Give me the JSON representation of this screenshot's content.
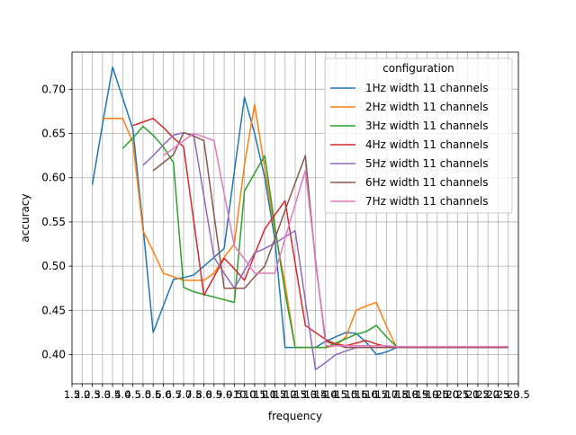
{
  "chart_data": {
    "type": "line",
    "xlabel": "frequency",
    "ylabel": "accuracy",
    "xlim": [
      1.5,
      23.5
    ],
    "ylim": [
      0.367,
      0.742
    ],
    "grid": true,
    "x_ticks": [
      1.5,
      2.0,
      2.5,
      3.0,
      3.5,
      4.0,
      4.5,
      5.0,
      5.5,
      6.0,
      6.5,
      7.0,
      7.5,
      8.0,
      8.5,
      9.0,
      9.5,
      10.0,
      10.5,
      11.0,
      11.5,
      12.0,
      12.5,
      13.0,
      13.5,
      14.0,
      14.5,
      15.0,
      15.5,
      16.0,
      16.5,
      17.0,
      17.5,
      18.0,
      18.5,
      19.0,
      19.5,
      20.0,
      20.5,
      21.0,
      21.5,
      22.0,
      22.5,
      23.0,
      23.5
    ],
    "x_tick_labels": [
      "1.5",
      "2.0",
      "2.5",
      "3.0",
      "3.5",
      "4.0",
      "4.5",
      "5.0",
      "5.5",
      "6.0",
      "6.5",
      "7.0",
      "7.5",
      "8.0",
      "8.5",
      "9.0",
      "9.5",
      "10.0",
      "10.5",
      "11.0",
      "11.5",
      "12.0",
      "12.5",
      "13.0",
      "13.5",
      "14.0",
      "14.5",
      "15.0",
      "15.5",
      "16.0",
      "16.5",
      "17.0",
      "17.5",
      "18.0",
      "18.5",
      "19.0",
      "19.5",
      "20.0",
      "20.5",
      "21.0",
      "21.5",
      "22.0",
      "22.5",
      "23.0",
      "23.5"
    ],
    "y_ticks": [
      0.4,
      0.45,
      0.5,
      0.55,
      0.6,
      0.65,
      0.7
    ],
    "y_tick_labels": [
      "0.40",
      "0.45",
      "0.50",
      "0.55",
      "0.60",
      "0.65",
      "0.70"
    ],
    "legend": {
      "title": "configuration",
      "placement": "top-right"
    },
    "series": [
      {
        "name": "1Hz width 11 channels",
        "color": "#1f77b4",
        "x": [
          2.5,
          3.0,
          3.5,
          4.0,
          4.5,
          5.0,
          5.5,
          6.0,
          6.5,
          7.0,
          7.5,
          8.0,
          8.5,
          9.0,
          9.5,
          10.0,
          10.5,
          11.0,
          11.5,
          12.0,
          12.5,
          13.0,
          13.5,
          14.0,
          14.5,
          15.0,
          15.5,
          16.0,
          16.5,
          17.0,
          17.5,
          18.0,
          18.5,
          19.0,
          19.5,
          20.0,
          20.5,
          21.0
        ],
        "y": [
          0.592,
          0.66,
          0.725,
          0.69,
          0.655,
          0.545,
          0.425,
          0.455,
          0.485,
          0.487,
          0.49,
          0.5,
          0.51,
          0.52,
          0.607,
          0.691,
          0.65,
          0.6,
          0.53,
          0.408,
          0.408,
          0.408,
          0.408,
          0.415,
          0.42,
          0.425,
          0.424,
          0.414,
          0.4,
          0.403,
          0.408,
          0.408,
          0.408,
          0.408,
          0.408,
          0.408,
          0.408,
          0.408
        ]
      },
      {
        "name": "2Hz width 11 channels",
        "color": "#ff7f0e",
        "x": [
          3.0,
          3.5,
          4.0,
          4.5,
          5.0,
          5.5,
          6.0,
          6.5,
          7.0,
          7.5,
          8.0,
          8.5,
          9.0,
          9.5,
          10.0,
          10.5,
          11.0,
          11.5,
          12.0,
          12.5,
          13.0,
          13.5,
          14.0,
          14.5,
          15.0,
          15.5,
          16.0,
          16.5,
          17.0,
          17.5,
          18.0,
          18.5,
          19.0,
          19.5,
          20.0,
          20.5,
          21.0,
          21.5
        ],
        "y": [
          0.667,
          0.667,
          0.667,
          0.64,
          0.54,
          0.517,
          0.492,
          0.488,
          0.484,
          0.484,
          0.484,
          0.492,
          0.51,
          0.525,
          0.615,
          0.683,
          0.61,
          0.54,
          0.48,
          0.408,
          0.408,
          0.408,
          0.408,
          0.41,
          0.42,
          0.45,
          0.455,
          0.459,
          0.432,
          0.408,
          0.408,
          0.408,
          0.408,
          0.408,
          0.408,
          0.408,
          0.408,
          0.408
        ]
      },
      {
        "name": "3Hz width 11 channels",
        "color": "#2ca02c",
        "x": [
          4.0,
          4.5,
          5.0,
          5.5,
          6.0,
          6.5,
          7.0,
          7.5,
          8.0,
          8.5,
          9.0,
          9.5,
          10.0,
          10.5,
          11.0,
          11.5,
          12.0,
          12.5,
          13.0,
          13.5,
          14.0,
          14.5,
          15.0,
          15.5,
          16.0,
          16.5,
          17.0,
          17.5,
          18.0,
          18.5,
          19.0,
          19.5,
          20.0,
          20.5,
          21.0,
          21.5,
          22.0
        ],
        "y": [
          0.633,
          0.645,
          0.658,
          0.648,
          0.635,
          0.617,
          0.476,
          0.471,
          0.468,
          0.465,
          0.462,
          0.459,
          0.585,
          0.605,
          0.625,
          0.545,
          0.47,
          0.408,
          0.408,
          0.408,
          0.408,
          0.413,
          0.418,
          0.423,
          0.426,
          0.433,
          0.42,
          0.409,
          0.408,
          0.408,
          0.408,
          0.408,
          0.408,
          0.408,
          0.408,
          0.408,
          0.408
        ]
      },
      {
        "name": "4Hz width 11 channels",
        "color": "#d62728",
        "x": [
          4.5,
          5.0,
          5.5,
          6.0,
          6.5,
          7.0,
          7.5,
          8.0,
          8.5,
          9.0,
          9.5,
          10.0,
          10.5,
          11.0,
          11.5,
          12.0,
          12.5,
          13.0,
          13.5,
          14.0,
          14.5,
          15.0,
          15.5,
          16.0,
          16.5,
          17.0,
          17.5,
          18.0,
          18.5,
          19.0,
          19.5,
          20.0,
          20.5,
          21.0,
          21.5,
          22.0,
          22.5
        ],
        "y": [
          0.659,
          0.663,
          0.667,
          0.657,
          0.645,
          0.635,
          0.551,
          0.467,
          0.488,
          0.509,
          0.497,
          0.484,
          0.513,
          0.542,
          0.558,
          0.574,
          0.503,
          0.433,
          0.425,
          0.417,
          0.412,
          0.41,
          0.413,
          0.416,
          0.412,
          0.409,
          0.409,
          0.408,
          0.408,
          0.408,
          0.408,
          0.408,
          0.408,
          0.408,
          0.408,
          0.408,
          0.408
        ]
      },
      {
        "name": "5Hz width 11 channels",
        "color": "#9467bd",
        "x": [
          5.0,
          5.5,
          6.0,
          6.5,
          7.0,
          7.5,
          8.0,
          8.5,
          9.0,
          9.5,
          10.0,
          10.5,
          11.0,
          11.5,
          12.0,
          12.5,
          13.0,
          13.5,
          14.0,
          14.5,
          15.0,
          15.5,
          16.0,
          16.5,
          17.0,
          17.5,
          18.0,
          18.5,
          19.0,
          19.5,
          20.0,
          20.5,
          21.0,
          21.5,
          22.0,
          22.5,
          23.0
        ],
        "y": [
          0.614,
          0.625,
          0.637,
          0.648,
          0.651,
          0.648,
          0.579,
          0.51,
          0.492,
          0.475,
          0.495,
          0.515,
          0.52,
          0.526,
          0.533,
          0.54,
          0.461,
          0.383,
          0.391,
          0.4,
          0.404,
          0.408,
          0.408,
          0.408,
          0.408,
          0.408,
          0.408,
          0.408,
          0.408,
          0.408,
          0.408,
          0.408,
          0.408,
          0.408,
          0.408,
          0.408,
          0.408
        ]
      },
      {
        "name": "6Hz width 11 channels",
        "color": "#8c564b",
        "x": [
          5.5,
          6.0,
          6.5,
          7.0,
          7.5,
          8.0,
          8.5,
          9.0,
          9.5,
          10.0,
          10.5,
          11.0,
          11.5,
          12.0,
          12.5,
          13.0,
          13.5,
          14.0,
          14.5,
          15.0,
          15.5,
          16.0,
          16.5,
          17.0,
          17.5,
          18.0,
          18.5,
          19.0,
          19.5,
          20.0,
          20.5,
          21.0,
          21.5,
          22.0,
          22.5,
          23.0
        ],
        "y": [
          0.608,
          0.617,
          0.626,
          0.651,
          0.647,
          0.642,
          0.558,
          0.475,
          0.475,
          0.475,
          0.488,
          0.5,
          0.531,
          0.563,
          0.594,
          0.625,
          0.505,
          0.415,
          0.411,
          0.408,
          0.408,
          0.408,
          0.408,
          0.408,
          0.408,
          0.408,
          0.408,
          0.408,
          0.408,
          0.408,
          0.408,
          0.408,
          0.408,
          0.408,
          0.408,
          0.408
        ]
      },
      {
        "name": "7Hz width 11 channels",
        "color": "#e377c2",
        "x": [
          6.0,
          6.5,
          7.0,
          7.5,
          8.0,
          8.5,
          9.0,
          9.5,
          10.0,
          10.5,
          11.0,
          11.5,
          12.0,
          12.5,
          13.0,
          13.5,
          14.0,
          14.5,
          15.0,
          15.5,
          16.0,
          16.5,
          17.0,
          17.5,
          18.0,
          18.5,
          19.0,
          19.5,
          20.0,
          20.5,
          21.0,
          21.5,
          22.0,
          22.5,
          23.0
        ],
        "y": [
          0.625,
          0.633,
          0.642,
          0.65,
          0.646,
          0.642,
          0.582,
          0.523,
          0.508,
          0.492,
          0.492,
          0.492,
          0.531,
          0.57,
          0.608,
          0.509,
          0.41,
          0.41,
          0.41,
          0.41,
          0.41,
          0.41,
          0.41,
          0.409,
          0.409,
          0.409,
          0.409,
          0.409,
          0.409,
          0.409,
          0.409,
          0.409,
          0.409,
          0.409,
          0.409
        ]
      }
    ]
  }
}
